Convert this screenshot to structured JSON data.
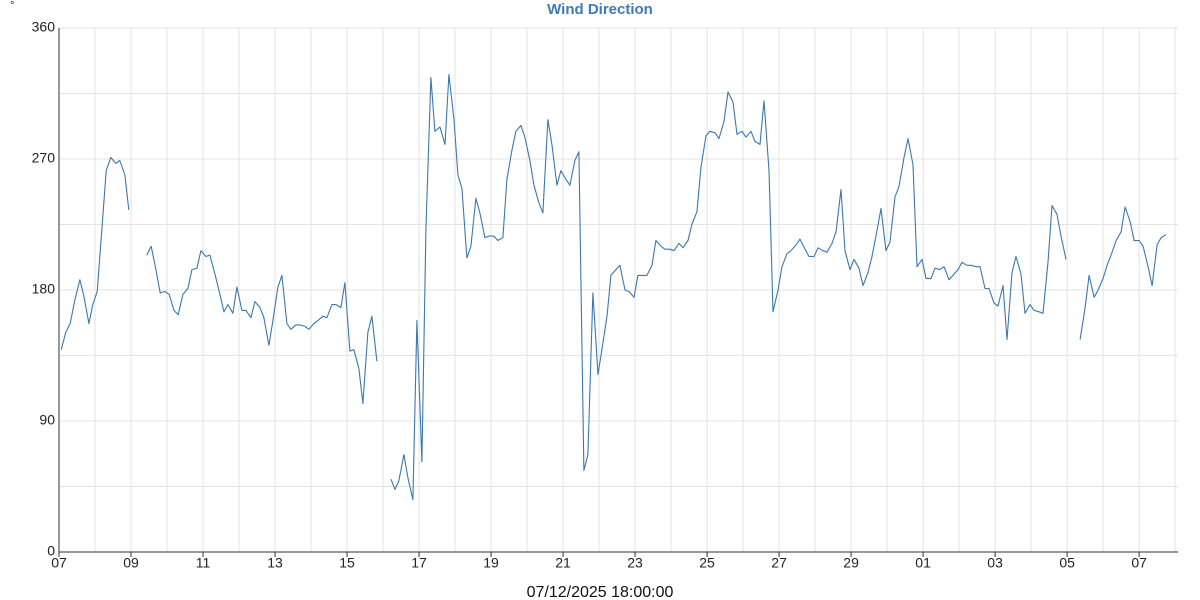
{
  "chart_data": {
    "type": "line",
    "title": "Wind Direction",
    "y_unit_label": "°",
    "x_label": "07/12/2025 18:00:00",
    "x": [
      0.06,
      0.19,
      0.31,
      0.44,
      0.58,
      0.69,
      0.83,
      0.94,
      1.06,
      1.19,
      1.31,
      1.44,
      1.58,
      1.69,
      1.83,
      1.94,
      2.2,
      2.44,
      2.56,
      2.69,
      2.81,
      2.94,
      3.06,
      3.19,
      3.31,
      3.44,
      3.58,
      3.69,
      3.83,
      3.94,
      4.08,
      4.19,
      4.33,
      4.44,
      4.58,
      4.69,
      4.83,
      4.94,
      5.08,
      5.19,
      5.33,
      5.44,
      5.58,
      5.69,
      5.83,
      5.94,
      6.08,
      6.19,
      6.33,
      6.44,
      6.58,
      6.69,
      6.83,
      6.94,
      7.08,
      7.19,
      7.33,
      7.44,
      7.58,
      7.69,
      7.83,
      7.94,
      8.08,
      8.19,
      8.33,
      8.44,
      8.58,
      8.69,
      8.83,
      9.0,
      9.22,
      9.33,
      9.44,
      9.58,
      9.69,
      9.83,
      9.94,
      10.08,
      10.19,
      10.33,
      10.44,
      10.58,
      10.72,
      10.83,
      10.97,
      11.08,
      11.19,
      11.33,
      11.44,
      11.58,
      11.69,
      11.83,
      11.94,
      12.08,
      12.19,
      12.33,
      12.44,
      12.58,
      12.69,
      12.83,
      12.94,
      13.08,
      13.19,
      13.33,
      13.44,
      13.58,
      13.69,
      13.83,
      13.94,
      14.08,
      14.19,
      14.33,
      14.44,
      14.58,
      14.69,
      14.83,
      14.97,
      15.08,
      15.22,
      15.33,
      15.47,
      15.58,
      15.72,
      15.83,
      15.97,
      16.08,
      16.22,
      16.33,
      16.47,
      16.58,
      16.72,
      16.83,
      16.97,
      17.08,
      17.22,
      17.33,
      17.47,
      17.58,
      17.72,
      17.83,
      17.97,
      18.08,
      18.22,
      18.33,
      18.47,
      18.58,
      18.72,
      18.83,
      18.97,
      19.08,
      19.22,
      19.33,
      19.47,
      19.58,
      19.72,
      19.83,
      19.97,
      20.08,
      20.22,
      20.33,
      20.47,
      20.58,
      20.72,
      20.83,
      20.97,
      21.08,
      21.22,
      21.33,
      21.47,
      21.58,
      21.72,
      21.83,
      21.97,
      22.08,
      22.22,
      22.33,
      22.47,
      22.58,
      22.72,
      22.83,
      22.97,
      23.08,
      23.22,
      23.33,
      23.47,
      23.58,
      23.72,
      23.83,
      23.97,
      24.08,
      24.22,
      24.33,
      24.47,
      24.58,
      24.72,
      24.83,
      24.97,
      25.08,
      25.22,
      25.33,
      25.47,
      25.58,
      25.72,
      25.83,
      25.97,
      26.08,
      26.22,
      26.33,
      26.47,
      26.58,
      26.72,
      26.83,
      26.97,
      27.08,
      27.22,
      27.33,
      27.47,
      27.58,
      27.72,
      27.83,
      27.97,
      28.17,
      28.36,
      28.5,
      28.61,
      28.75,
      28.86,
      29.0,
      29.11,
      29.25,
      29.36,
      29.5,
      29.61,
      29.75,
      29.86,
      30.0,
      30.11,
      30.25,
      30.36,
      30.5,
      30.61,
      30.75
    ],
    "series": [
      {
        "name": "Wind Direction",
        "color": "#3a78ad",
        "values": [
          139,
          151,
          157,
          173,
          187,
          176,
          157,
          170,
          179,
          221,
          262,
          271,
          267,
          269,
          259,
          235,
          null,
          204,
          210,
          194,
          178,
          179,
          177,
          166,
          163,
          177,
          181,
          194,
          195,
          207,
          203,
          204,
          191,
          180,
          165,
          170,
          164,
          182,
          166,
          166,
          161,
          172,
          168,
          161,
          142,
          159,
          182,
          190,
          157,
          153,
          156,
          156,
          155,
          153,
          157,
          159,
          162,
          161,
          170,
          170,
          168,
          185,
          138,
          139,
          126,
          102,
          151,
          162,
          131,
          null,
          50,
          43,
          49,
          67,
          51,
          36,
          159,
          62,
          221,
          326,
          289,
          292,
          280,
          328,
          297,
          259,
          250,
          202,
          210,
          243,
          233,
          216,
          217,
          217,
          214,
          216,
          256,
          276,
          289,
          293,
          285,
          269,
          252,
          240,
          233,
          297,
          280,
          252,
          262,
          256,
          252,
          269,
          275,
          56,
          67,
          178,
          122,
          139,
          162,
          190,
          194,
          197,
          180,
          179,
          175,
          190,
          190,
          190,
          197,
          214,
          210,
          208,
          208,
          207,
          212,
          209,
          214,
          225,
          234,
          264,
          286,
          289,
          288,
          284,
          296,
          316,
          309,
          287,
          289,
          285,
          289,
          282,
          280,
          310,
          262,
          165,
          180,
          196,
          205,
          207,
          211,
          215,
          208,
          203,
          203,
          209,
          207,
          206,
          212,
          220,
          249,
          207,
          194,
          201,
          195,
          183,
          192,
          203,
          221,
          236,
          207,
          213,
          244,
          251,
          271,
          284,
          266,
          196,
          201,
          188,
          188,
          195,
          194,
          196,
          187,
          190,
          194,
          199,
          197,
          197,
          196,
          196,
          181,
          181,
          171,
          169,
          183,
          146,
          192,
          203,
          191,
          164,
          170,
          166,
          165,
          164,
          199,
          238,
          232,
          217,
          201,
          null,
          146,
          168,
          190,
          175,
          180,
          188,
          197,
          206,
          214,
          220,
          237,
          227,
          214,
          214,
          210,
          196,
          183,
          211,
          216,
          218
        ]
      }
    ],
    "xlim": [
      0,
      31.08
    ],
    "xticks": [
      {
        "value": 0,
        "label": "07"
      },
      {
        "value": 2,
        "label": "09"
      },
      {
        "value": 4,
        "label": "11"
      },
      {
        "value": 6,
        "label": "13"
      },
      {
        "value": 8,
        "label": "15"
      },
      {
        "value": 10,
        "label": "17"
      },
      {
        "value": 12,
        "label": "19"
      },
      {
        "value": 14,
        "label": "21"
      },
      {
        "value": 16,
        "label": "23"
      },
      {
        "value": 18,
        "label": "25"
      },
      {
        "value": 20,
        "label": "27"
      },
      {
        "value": 22,
        "label": "29"
      },
      {
        "value": 24,
        "label": "01"
      },
      {
        "value": 26,
        "label": "03"
      },
      {
        "value": 28,
        "label": "05"
      },
      {
        "value": 30,
        "label": "07"
      }
    ],
    "minor_xticks": [
      1,
      3,
      5,
      7,
      9,
      11,
      13,
      15,
      17,
      19,
      21,
      23,
      25,
      27,
      29,
      31
    ],
    "ylim": [
      0,
      360
    ],
    "yticks": [
      0,
      90,
      180,
      270,
      360
    ],
    "minor_yticks": [
      45,
      135,
      225,
      315
    ],
    "grid": true
  }
}
